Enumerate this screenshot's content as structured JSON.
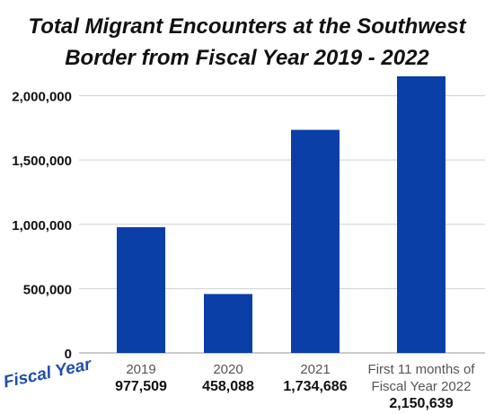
{
  "title_line1": "Total Migrant Encounters at the Southwest",
  "title_line2": "Border from Fiscal Year 2019 - 2022",
  "chart_data": {
    "type": "bar",
    "xlabel": "Fiscal Year",
    "ylabel": "",
    "ylim": [
      0,
      2150639
    ],
    "yticks": [
      0,
      500000,
      1000000,
      1500000,
      2000000
    ],
    "ytick_labels": [
      "0",
      "500,000",
      "1,000,000",
      "1,500,000",
      "2,000,000"
    ],
    "categories": [
      {
        "label_lines": [
          "2019"
        ],
        "value_label": "977,509"
      },
      {
        "label_lines": [
          "2020"
        ],
        "value_label": "458,088"
      },
      {
        "label_lines": [
          "2021"
        ],
        "value_label": "1,734,686"
      },
      {
        "label_lines": [
          "First 11 months of",
          "Fiscal Year 2022"
        ],
        "value_label": "2,150,639"
      }
    ],
    "values": [
      977509,
      458088,
      1734686,
      2150639
    ],
    "bar_color": "#0a3fa8",
    "grid": true,
    "legend": "none"
  }
}
